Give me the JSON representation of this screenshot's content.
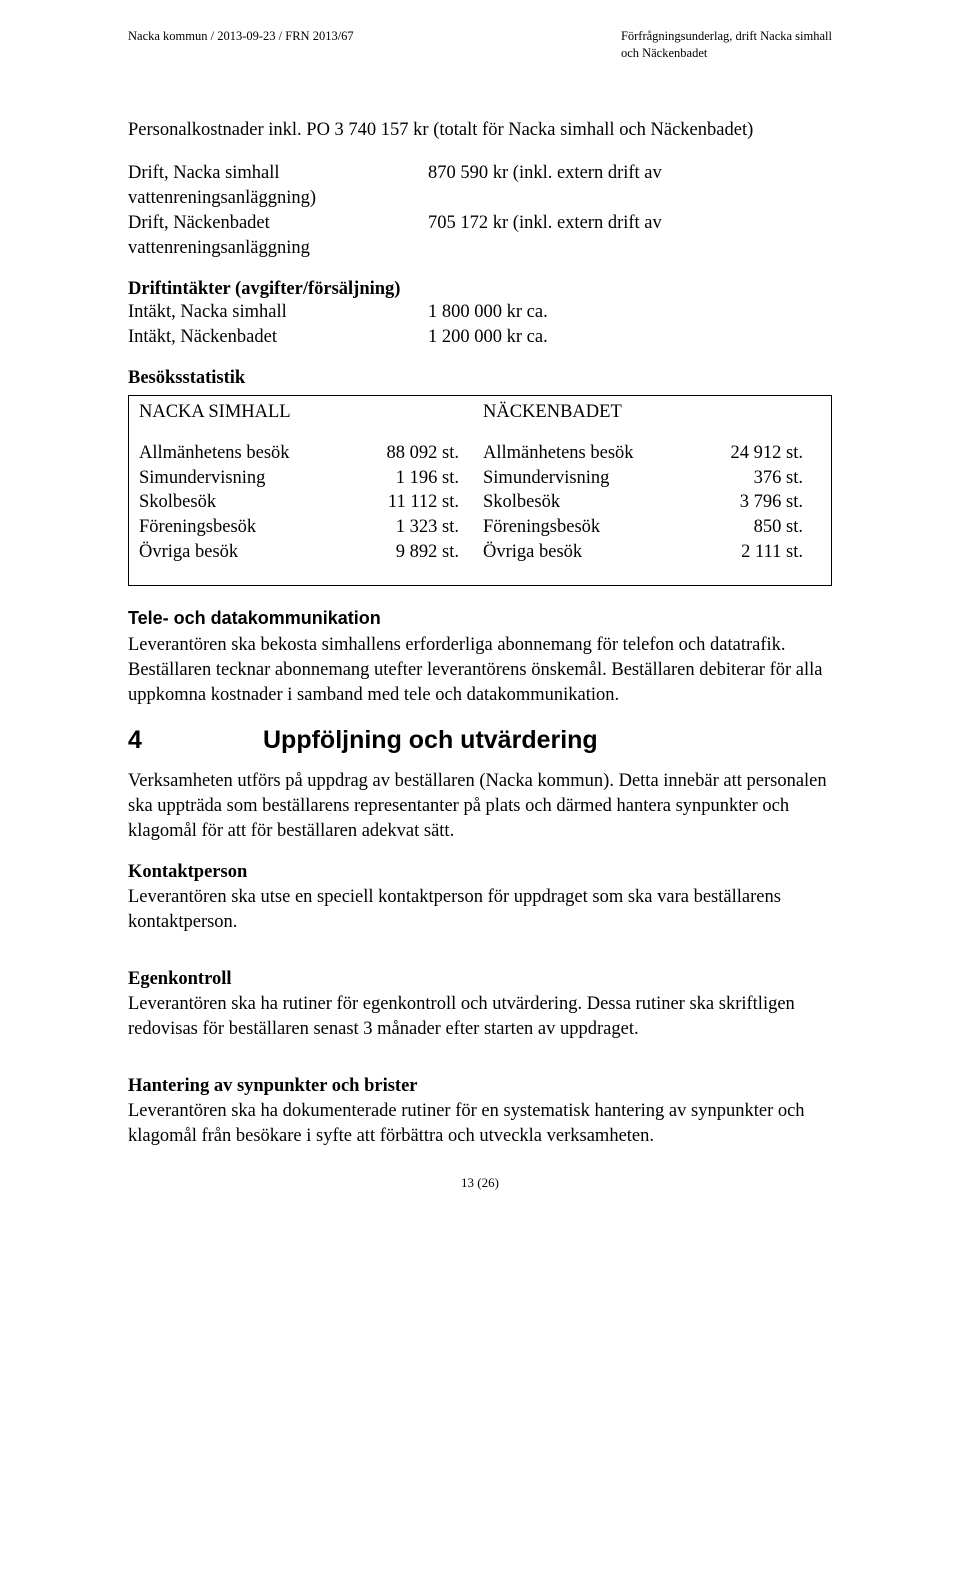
{
  "header": {
    "left": "Nacka kommun  /  2013-09-23  /  FRN  2013/67",
    "right_line1": "Förfrågningsunderlag, drift Nacka simhall",
    "right_line2": "och Näckenbadet"
  },
  "p1": "Personalkostnader inkl. PO  3 740 157 kr (totalt för Nacka simhall och Näckenbadet)",
  "drift": {
    "row1_key": "Drift, Nacka simhall",
    "row1_tail": "vattenreningsanläggning)",
    "row1_val": "870 590 kr (inkl. extern drift av",
    "row2_key": "Drift, Näckenbadet",
    "row2_tail": "vattenreningsanläggning",
    "row2_val": "705 172 kr (inkl. extern drift av"
  },
  "intakter": {
    "title": "Driftintäkter (avgifter/försäljning)",
    "row1_key": "Intäkt, Nacka simhall",
    "row1_val": "1 800 000 kr ca.",
    "row2_key": "Intäkt, Näckenbadet",
    "row2_val": "1 200 000 kr ca."
  },
  "stats": {
    "title": "Besöksstatistik",
    "left_title": "NACKA SIMHALL",
    "right_title": "NÄCKENBADET",
    "left_rows": [
      {
        "label": "Allmänhetens besök",
        "val": "88 092 st."
      },
      {
        "label": "Simundervisning",
        "val": "1 196 st."
      },
      {
        "label": "Skolbesök",
        "val": "11 112 st."
      },
      {
        "label": "Föreningsbesök",
        "val": "1 323 st."
      },
      {
        "label": "Övriga besök",
        "val": "9 892 st."
      }
    ],
    "right_rows": [
      {
        "label": "Allmänhetens besök",
        "val": "24 912 st."
      },
      {
        "label": "Simundervisning",
        "val": "376 st."
      },
      {
        "label": "Skolbesök",
        "val": "3 796 st."
      },
      {
        "label": "Föreningsbesök",
        "val": "850 st."
      },
      {
        "label": "Övriga besök",
        "val": "2 111 st."
      }
    ]
  },
  "tele": {
    "heading": "Tele- och datakommunikation",
    "body": "Leverantören ska bekosta simhallens erforderliga abonnemang för telefon och datatrafik. Beställaren tecknar abonnemang utefter leverantörens önskemål. Beställaren debiterar för alla uppkomna kostnader i samband med tele och datakommunikation."
  },
  "section4": {
    "num": "4",
    "title": "Uppföljning och utvärdering",
    "intro": "Verksamheten utförs på uppdrag av beställaren (Nacka kommun). Detta innebär att personalen ska uppträda som beställarens representanter på plats och därmed hantera synpunkter och klagomål för att för beställaren adekvat sätt."
  },
  "kontakt": {
    "heading": "Kontaktperson",
    "body": "Leverantören ska utse en speciell kontaktperson för uppdraget som ska vara beställarens kontaktperson."
  },
  "egen": {
    "heading": "Egenkontroll",
    "body": "Leverantören ska ha rutiner för egenkontroll och utvärdering. Dessa rutiner ska skriftligen redovisas för beställaren senast 3 månader efter starten av uppdraget."
  },
  "hantering": {
    "heading": "Hantering av synpunkter och brister",
    "body": "Leverantören ska ha dokumenterade rutiner för en systematisk hantering av synpunkter och klagomål från besökare i syfte att förbättra och utveckla verksamheten."
  },
  "footer": "13 (26)"
}
